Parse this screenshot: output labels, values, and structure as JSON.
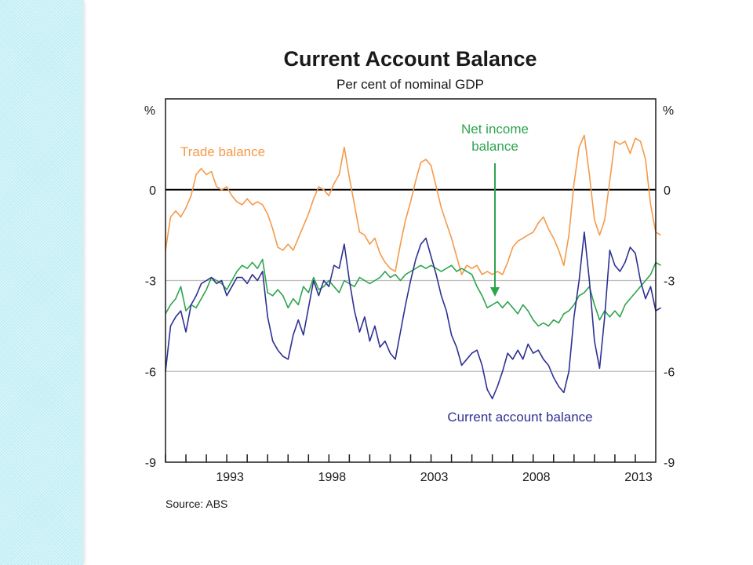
{
  "chart_data": {
    "type": "line",
    "title": "Current Account Balance",
    "subtitle": "Per cent of nominal GDP",
    "ylabel_left": "%",
    "ylabel_right": "%",
    "ylim": [
      -9,
      3
    ],
    "yticks": [
      0,
      -3,
      -6,
      -9
    ],
    "xlim": [
      1989.0,
      2013.0
    ],
    "xticks": [
      1993,
      1998,
      2003,
      2008,
      2013
    ],
    "grid": true,
    "source": "Source: ABS",
    "colors": {
      "trade": "#f59a4a",
      "net_income": "#2ea44f",
      "current_account": "#2e3192",
      "zero_line": "#000000",
      "grid": "#bdbdbd"
    },
    "series": [
      {
        "name": "Trade balance",
        "key": "trade",
        "values": [
          [
            1989.0,
            -2.0
          ],
          [
            1989.25,
            -0.9
          ],
          [
            1989.5,
            -0.7
          ],
          [
            1989.75,
            -0.9
          ],
          [
            1990.0,
            -0.6
          ],
          [
            1990.25,
            -0.2
          ],
          [
            1990.5,
            0.5
          ],
          [
            1990.75,
            0.7
          ],
          [
            1991.0,
            0.5
          ],
          [
            1991.25,
            0.6
          ],
          [
            1991.5,
            0.1
          ],
          [
            1991.75,
            0.0
          ],
          [
            1992.0,
            0.1
          ],
          [
            1992.25,
            -0.2
          ],
          [
            1992.5,
            -0.4
          ],
          [
            1992.75,
            -0.5
          ],
          [
            1993.0,
            -0.3
          ],
          [
            1993.25,
            -0.5
          ],
          [
            1993.5,
            -0.4
          ],
          [
            1993.75,
            -0.5
          ],
          [
            1994.0,
            -0.8
          ],
          [
            1994.25,
            -1.3
          ],
          [
            1994.5,
            -1.9
          ],
          [
            1994.75,
            -2.0
          ],
          [
            1995.0,
            -1.8
          ],
          [
            1995.25,
            -2.0
          ],
          [
            1995.5,
            -1.6
          ],
          [
            1995.75,
            -1.2
          ],
          [
            1996.0,
            -0.8
          ],
          [
            1996.25,
            -0.3
          ],
          [
            1996.5,
            0.1
          ],
          [
            1996.75,
            0.0
          ],
          [
            1997.0,
            -0.2
          ],
          [
            1997.25,
            0.2
          ],
          [
            1997.5,
            0.5
          ],
          [
            1997.75,
            1.4
          ],
          [
            1998.0,
            0.4
          ],
          [
            1998.25,
            -0.5
          ],
          [
            1998.5,
            -1.4
          ],
          [
            1998.75,
            -1.5
          ],
          [
            1999.0,
            -1.8
          ],
          [
            1999.25,
            -1.6
          ],
          [
            1999.5,
            -2.1
          ],
          [
            1999.75,
            -2.4
          ],
          [
            2000.0,
            -2.6
          ],
          [
            2000.25,
            -2.7
          ],
          [
            2000.5,
            -1.8
          ],
          [
            2000.75,
            -1.0
          ],
          [
            2001.0,
            -0.4
          ],
          [
            2001.25,
            0.3
          ],
          [
            2001.5,
            0.9
          ],
          [
            2001.75,
            1.0
          ],
          [
            2002.0,
            0.8
          ],
          [
            2002.25,
            0.1
          ],
          [
            2002.5,
            -0.6
          ],
          [
            2002.75,
            -1.1
          ],
          [
            2003.0,
            -1.6
          ],
          [
            2003.25,
            -2.2
          ],
          [
            2003.5,
            -2.8
          ],
          [
            2003.75,
            -2.5
          ],
          [
            2004.0,
            -2.6
          ],
          [
            2004.25,
            -2.5
          ],
          [
            2004.5,
            -2.8
          ],
          [
            2004.75,
            -2.7
          ],
          [
            2005.0,
            -2.8
          ],
          [
            2005.25,
            -2.7
          ],
          [
            2005.5,
            -2.8
          ],
          [
            2005.75,
            -2.4
          ],
          [
            2006.0,
            -1.9
          ],
          [
            2006.25,
            -1.7
          ],
          [
            2006.5,
            -1.6
          ],
          [
            2006.75,
            -1.5
          ],
          [
            2007.0,
            -1.4
          ],
          [
            2007.25,
            -1.1
          ],
          [
            2007.5,
            -0.9
          ],
          [
            2007.75,
            -1.3
          ],
          [
            2008.0,
            -1.6
          ],
          [
            2008.25,
            -2.0
          ],
          [
            2008.5,
            -2.5
          ],
          [
            2008.75,
            -1.5
          ],
          [
            2009.0,
            0.2
          ],
          [
            2009.25,
            1.4
          ],
          [
            2009.5,
            1.8
          ],
          [
            2009.75,
            0.5
          ],
          [
            2010.0,
            -1.0
          ],
          [
            2010.25,
            -1.5
          ],
          [
            2010.5,
            -1.0
          ],
          [
            2010.75,
            0.3
          ],
          [
            2011.0,
            1.6
          ],
          [
            2011.25,
            1.5
          ],
          [
            2011.5,
            1.6
          ],
          [
            2011.75,
            1.2
          ],
          [
            2012.0,
            1.7
          ],
          [
            2012.25,
            1.6
          ],
          [
            2012.5,
            1.0
          ],
          [
            2012.75,
            -0.5
          ],
          [
            2013.0,
            -1.4
          ],
          [
            2013.25,
            -1.5
          ]
        ]
      },
      {
        "name": "Net income balance",
        "key": "net_income",
        "values": [
          [
            1989.0,
            -4.1
          ],
          [
            1989.25,
            -3.8
          ],
          [
            1989.5,
            -3.6
          ],
          [
            1989.75,
            -3.2
          ],
          [
            1990.0,
            -4.0
          ],
          [
            1990.25,
            -3.8
          ],
          [
            1990.5,
            -3.9
          ],
          [
            1990.75,
            -3.6
          ],
          [
            1991.0,
            -3.3
          ],
          [
            1991.25,
            -2.9
          ],
          [
            1991.5,
            -3.0
          ],
          [
            1991.75,
            -3.1
          ],
          [
            1992.0,
            -3.3
          ],
          [
            1992.25,
            -3.0
          ],
          [
            1992.5,
            -2.7
          ],
          [
            1992.75,
            -2.5
          ],
          [
            1993.0,
            -2.6
          ],
          [
            1993.25,
            -2.4
          ],
          [
            1993.5,
            -2.6
          ],
          [
            1993.75,
            -2.3
          ],
          [
            1994.0,
            -3.4
          ],
          [
            1994.25,
            -3.5
          ],
          [
            1994.5,
            -3.3
          ],
          [
            1994.75,
            -3.5
          ],
          [
            1995.0,
            -3.9
          ],
          [
            1995.25,
            -3.6
          ],
          [
            1995.5,
            -3.8
          ],
          [
            1995.75,
            -3.2
          ],
          [
            1996.0,
            -3.4
          ],
          [
            1996.25,
            -2.9
          ],
          [
            1996.5,
            -3.3
          ],
          [
            1996.75,
            -3.2
          ],
          [
            1997.0,
            -3.0
          ],
          [
            1997.25,
            -3.2
          ],
          [
            1997.5,
            -3.4
          ],
          [
            1997.75,
            -3.0
          ],
          [
            1998.0,
            -3.1
          ],
          [
            1998.25,
            -3.2
          ],
          [
            1998.5,
            -2.9
          ],
          [
            1998.75,
            -3.0
          ],
          [
            1999.0,
            -3.1
          ],
          [
            1999.25,
            -3.0
          ],
          [
            1999.5,
            -2.9
          ],
          [
            1999.75,
            -2.7
          ],
          [
            2000.0,
            -2.9
          ],
          [
            2000.25,
            -2.8
          ],
          [
            2000.5,
            -3.0
          ],
          [
            2000.75,
            -2.8
          ],
          [
            2001.0,
            -2.7
          ],
          [
            2001.25,
            -2.6
          ],
          [
            2001.5,
            -2.5
          ],
          [
            2001.75,
            -2.6
          ],
          [
            2002.0,
            -2.5
          ],
          [
            2002.25,
            -2.6
          ],
          [
            2002.5,
            -2.7
          ],
          [
            2002.75,
            -2.6
          ],
          [
            2003.0,
            -2.5
          ],
          [
            2003.25,
            -2.7
          ],
          [
            2003.5,
            -2.6
          ],
          [
            2003.75,
            -2.7
          ],
          [
            2004.0,
            -2.8
          ],
          [
            2004.25,
            -3.2
          ],
          [
            2004.5,
            -3.5
          ],
          [
            2004.75,
            -3.9
          ],
          [
            2005.0,
            -3.8
          ],
          [
            2005.25,
            -3.7
          ],
          [
            2005.5,
            -3.9
          ],
          [
            2005.75,
            -3.7
          ],
          [
            2006.0,
            -3.9
          ],
          [
            2006.25,
            -4.1
          ],
          [
            2006.5,
            -3.8
          ],
          [
            2006.75,
            -4.0
          ],
          [
            2007.0,
            -4.3
          ],
          [
            2007.25,
            -4.5
          ],
          [
            2007.5,
            -4.4
          ],
          [
            2007.75,
            -4.5
          ],
          [
            2008.0,
            -4.3
          ],
          [
            2008.25,
            -4.4
          ],
          [
            2008.5,
            -4.1
          ],
          [
            2008.75,
            -4.0
          ],
          [
            2009.0,
            -3.8
          ],
          [
            2009.25,
            -3.5
          ],
          [
            2009.5,
            -3.4
          ],
          [
            2009.75,
            -3.2
          ],
          [
            2010.0,
            -3.8
          ],
          [
            2010.25,
            -4.3
          ],
          [
            2010.5,
            -4.0
          ],
          [
            2010.75,
            -4.2
          ],
          [
            2011.0,
            -4.0
          ],
          [
            2011.25,
            -4.2
          ],
          [
            2011.5,
            -3.8
          ],
          [
            2011.75,
            -3.6
          ],
          [
            2012.0,
            -3.4
          ],
          [
            2012.25,
            -3.2
          ],
          [
            2012.5,
            -3.0
          ],
          [
            2012.75,
            -2.8
          ],
          [
            2013.0,
            -2.4
          ],
          [
            2013.25,
            -2.5
          ]
        ]
      },
      {
        "name": "Current account balance",
        "key": "current_account",
        "values": [
          [
            1989.0,
            -6.0
          ],
          [
            1989.25,
            -4.5
          ],
          [
            1989.5,
            -4.2
          ],
          [
            1989.75,
            -4.0
          ],
          [
            1990.0,
            -4.7
          ],
          [
            1990.25,
            -3.8
          ],
          [
            1990.5,
            -3.5
          ],
          [
            1990.75,
            -3.1
          ],
          [
            1991.0,
            -3.0
          ],
          [
            1991.25,
            -2.9
          ],
          [
            1991.5,
            -3.1
          ],
          [
            1991.75,
            -3.0
          ],
          [
            1992.0,
            -3.5
          ],
          [
            1992.25,
            -3.2
          ],
          [
            1992.5,
            -2.9
          ],
          [
            1992.75,
            -2.9
          ],
          [
            1993.0,
            -3.1
          ],
          [
            1993.25,
            -2.8
          ],
          [
            1993.5,
            -3.0
          ],
          [
            1993.75,
            -2.7
          ],
          [
            1994.0,
            -4.2
          ],
          [
            1994.25,
            -5.0
          ],
          [
            1994.5,
            -5.3
          ],
          [
            1994.75,
            -5.5
          ],
          [
            1995.0,
            -5.6
          ],
          [
            1995.25,
            -4.8
          ],
          [
            1995.5,
            -4.3
          ],
          [
            1995.75,
            -4.8
          ],
          [
            1996.0,
            -3.9
          ],
          [
            1996.25,
            -3.0
          ],
          [
            1996.5,
            -3.5
          ],
          [
            1996.75,
            -3.0
          ],
          [
            1997.0,
            -3.2
          ],
          [
            1997.25,
            -2.5
          ],
          [
            1997.5,
            -2.6
          ],
          [
            1997.75,
            -1.8
          ],
          [
            1998.0,
            -3.0
          ],
          [
            1998.25,
            -4.0
          ],
          [
            1998.5,
            -4.7
          ],
          [
            1998.75,
            -4.2
          ],
          [
            1999.0,
            -5.0
          ],
          [
            1999.25,
            -4.5
          ],
          [
            1999.5,
            -5.2
          ],
          [
            1999.75,
            -5.0
          ],
          [
            2000.0,
            -5.4
          ],
          [
            2000.25,
            -5.6
          ],
          [
            2000.5,
            -4.7
          ],
          [
            2000.75,
            -3.8
          ],
          [
            2001.0,
            -3.0
          ],
          [
            2001.25,
            -2.3
          ],
          [
            2001.5,
            -1.8
          ],
          [
            2001.75,
            -1.6
          ],
          [
            2002.0,
            -2.2
          ],
          [
            2002.25,
            -2.8
          ],
          [
            2002.5,
            -3.5
          ],
          [
            2002.75,
            -4.0
          ],
          [
            2003.0,
            -4.8
          ],
          [
            2003.25,
            -5.2
          ],
          [
            2003.5,
            -5.8
          ],
          [
            2003.75,
            -5.6
          ],
          [
            2004.0,
            -5.4
          ],
          [
            2004.25,
            -5.3
          ],
          [
            2004.5,
            -5.8
          ],
          [
            2004.75,
            -6.6
          ],
          [
            2005.0,
            -6.9
          ],
          [
            2005.25,
            -6.5
          ],
          [
            2005.5,
            -6.0
          ],
          [
            2005.75,
            -5.4
          ],
          [
            2006.0,
            -5.6
          ],
          [
            2006.25,
            -5.3
          ],
          [
            2006.5,
            -5.6
          ],
          [
            2006.75,
            -5.1
          ],
          [
            2007.0,
            -5.4
          ],
          [
            2007.25,
            -5.3
          ],
          [
            2007.5,
            -5.6
          ],
          [
            2007.75,
            -5.8
          ],
          [
            2008.0,
            -6.2
          ],
          [
            2008.25,
            -6.5
          ],
          [
            2008.5,
            -6.7
          ],
          [
            2008.75,
            -6.0
          ],
          [
            2009.0,
            -4.2
          ],
          [
            2009.25,
            -3.0
          ],
          [
            2009.5,
            -1.4
          ],
          [
            2009.75,
            -3.0
          ],
          [
            2010.0,
            -5.0
          ],
          [
            2010.25,
            -5.9
          ],
          [
            2010.5,
            -4.2
          ],
          [
            2010.75,
            -2.0
          ],
          [
            2011.0,
            -2.5
          ],
          [
            2011.25,
            -2.7
          ],
          [
            2011.5,
            -2.4
          ],
          [
            2011.75,
            -1.9
          ],
          [
            2012.0,
            -2.1
          ],
          [
            2012.25,
            -3.0
          ],
          [
            2012.5,
            -3.6
          ],
          [
            2012.75,
            -3.2
          ],
          [
            2013.0,
            -4.0
          ],
          [
            2013.25,
            -3.9
          ]
        ]
      }
    ],
    "annotations": {
      "trade": "Trade balance",
      "net_income_line1": "Net income",
      "net_income_line2": "balance",
      "current_account": "Current account balance"
    }
  }
}
